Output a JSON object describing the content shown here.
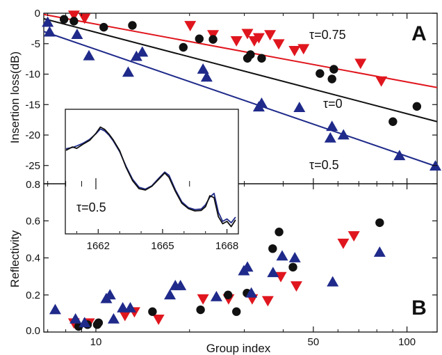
{
  "chart_data": [
    {
      "panel": "A",
      "type": "scatter",
      "ylabel": "Insertion loss(dB)",
      "xscale": "log",
      "xlim": [
        6.8,
        125
      ],
      "ylim": [
        -28,
        0
      ],
      "yticks": [
        "0",
        "-5",
        "-10",
        "-15",
        "-20",
        "-25"
      ],
      "colors": {
        "tau_0.75": "#e0161e",
        "tau_0": "#111111",
        "tau_0.5": "#1f2a8a"
      },
      "annotations": [
        "τ=0.75",
        "τ=0",
        "τ=0.5"
      ],
      "series": [
        {
          "name": "τ=0.75",
          "marker": "triangle-down",
          "color": "#e0161e",
          "points": [
            [
              8.5,
              -0.3
            ],
            [
              9.2,
              -0.8
            ],
            [
              20.1,
              -2.0
            ],
            [
              23.8,
              -3.5
            ],
            [
              28.3,
              -4.5
            ],
            [
              30.7,
              -3.3
            ],
            [
              32.3,
              -4.5
            ],
            [
              33.4,
              -4.0
            ],
            [
              36.3,
              -3.5
            ],
            [
              38.7,
              -5.0
            ],
            [
              43.5,
              -6.1
            ],
            [
              46.5,
              -5.8
            ],
            [
              70.9,
              -8.2
            ],
            [
              82.7,
              -11.1
            ]
          ],
          "fit": [
            [
              6.8,
              -0.2
            ],
            [
              125,
              -12.2
            ]
          ]
        },
        {
          "name": "τ=0",
          "marker": "circle",
          "color": "#111111",
          "points": [
            [
              7.9,
              -1.0
            ],
            [
              8.5,
              -1.3
            ],
            [
              10.6,
              -2.3
            ],
            [
              13.1,
              -2.0
            ],
            [
              19.1,
              -5.6
            ],
            [
              21.5,
              -4.2
            ],
            [
              23.8,
              -4.3
            ],
            [
              30.7,
              -7.4
            ],
            [
              31.4,
              -6.8
            ],
            [
              34.1,
              -7.4
            ],
            [
              52.5,
              -9.9
            ],
            [
              57.4,
              -10.8
            ],
            [
              58.2,
              -9.2
            ],
            [
              90.1,
              -17.8
            ],
            [
              107.6,
              -15.3
            ]
          ],
          "fit": [
            [
              6.8,
              -0.9
            ],
            [
              125,
              -17.8
            ]
          ]
        },
        {
          "name": "τ=0.5",
          "marker": "triangle-up",
          "color": "#1f2a8a",
          "points": [
            [
              7.0,
              -1.5
            ],
            [
              7.1,
              -3.1
            ],
            [
              8.7,
              -3.5
            ],
            [
              9.5,
              -7.0
            ],
            [
              12.7,
              -9.7
            ],
            [
              13.5,
              -7.1
            ],
            [
              14.1,
              -6.4
            ],
            [
              22.1,
              -9.2
            ],
            [
              22.7,
              -10.5
            ],
            [
              33.4,
              -15.4
            ],
            [
              34.1,
              -14.8
            ],
            [
              45.1,
              -15.5
            ],
            [
              56.7,
              -20.5
            ],
            [
              57.4,
              -18.6
            ],
            [
              62.5,
              -20.0
            ],
            [
              94.6,
              -23.4
            ],
            [
              123.4,
              -25.1
            ]
          ],
          "fit": [
            [
              6.8,
              -3.0
            ],
            [
              125,
              -25.2
            ]
          ]
        }
      ]
    },
    {
      "panel": "B",
      "type": "scatter",
      "ylabel": "Reflectivity",
      "xlabel": "Group index",
      "xscale": "log",
      "xlim": [
        6.8,
        125
      ],
      "ylim": [
        0.0,
        0.8
      ],
      "yticks": [
        "0.0",
        "0.2",
        "0.4",
        "0.6",
        "0.8"
      ],
      "xticks": [
        "10",
        "50",
        "100"
      ],
      "series": [
        {
          "name": "τ=0.75",
          "marker": "triangle-down",
          "color": "#e0161e",
          "points": [
            [
              8.5,
              0.05
            ],
            [
              9.5,
              0.05
            ],
            [
              12.4,
              0.09
            ],
            [
              13.3,
              0.11
            ],
            [
              15.9,
              0.07
            ],
            [
              22.1,
              0.18
            ],
            [
              26.7,
              0.18
            ],
            [
              31.8,
              0.18
            ],
            [
              35.7,
              0.17
            ],
            [
              39.3,
              0.3
            ],
            [
              44.1,
              0.25
            ],
            [
              62.4,
              0.48
            ],
            [
              67.5,
              0.52
            ]
          ],
          "fit": null
        },
        {
          "name": "τ=0",
          "marker": "circle",
          "color": "#111111",
          "points": [
            [
              8.8,
              0.03
            ],
            [
              9.4,
              0.04
            ],
            [
              10.1,
              0.04
            ],
            [
              10.2,
              0.05
            ],
            [
              15.2,
              0.11
            ],
            [
              21.7,
              0.12
            ],
            [
              26.6,
              0.2
            ],
            [
              28.3,
              0.11
            ],
            [
              30.6,
              0.21
            ],
            [
              37.0,
              0.45
            ],
            [
              38.8,
              0.54
            ],
            [
              43.0,
              0.35
            ],
            [
              81.7,
              0.59
            ]
          ],
          "fit": null
        },
        {
          "name": "τ=0.5",
          "marker": "triangle-up",
          "color": "#1f2a8a",
          "points": [
            [
              7.4,
              0.12
            ],
            [
              8.6,
              0.07
            ],
            [
              9.2,
              0.05
            ],
            [
              10.8,
              0.18
            ],
            [
              11.1,
              0.2
            ],
            [
              11.4,
              0.07
            ],
            [
              12.2,
              0.13
            ],
            [
              12.9,
              0.13
            ],
            [
              17.3,
              0.2
            ],
            [
              18.0,
              0.25
            ],
            [
              18.7,
              0.25
            ],
            [
              24.4,
              0.19
            ],
            [
              29.9,
              0.33
            ],
            [
              30.7,
              0.35
            ],
            [
              31.6,
              0.21
            ],
            [
              37.1,
              0.32
            ],
            [
              39.7,
              0.41
            ],
            [
              43.6,
              0.4
            ],
            [
              57.7,
              0.27
            ],
            [
              81.7,
              0.43
            ]
          ],
          "fit": null
        }
      ]
    },
    {
      "panel": "inset",
      "type": "line",
      "xlim": [
        1660.5,
        1668.5
      ],
      "xticks": [
        "1662",
        "1665",
        "1668"
      ],
      "annotation": "τ=0.5",
      "series": [
        {
          "name": "measured",
          "color": "#111111",
          "points": [
            [
              1660.5,
              -18.5
            ],
            [
              1660.8,
              -17.8
            ],
            [
              1661.0,
              -18.1
            ],
            [
              1661.3,
              -17.2
            ],
            [
              1661.6,
              -16.4
            ],
            [
              1661.9,
              -14.9
            ],
            [
              1662.1,
              -13.6
            ],
            [
              1662.3,
              -14.1
            ],
            [
              1662.5,
              -15.1
            ],
            [
              1662.7,
              -16.3
            ],
            [
              1663.0,
              -18.6
            ],
            [
              1663.3,
              -22.1
            ],
            [
              1663.6,
              -24.9
            ],
            [
              1663.9,
              -26.6
            ],
            [
              1664.2,
              -26.9
            ],
            [
              1664.5,
              -26.1
            ],
            [
              1664.8,
              -24.7
            ],
            [
              1665.1,
              -23.3
            ],
            [
              1665.3,
              -24.2
            ],
            [
              1665.6,
              -27.2
            ],
            [
              1665.9,
              -29.7
            ],
            [
              1666.2,
              -30.8
            ],
            [
              1666.5,
              -31.3
            ],
            [
              1666.8,
              -31.2
            ],
            [
              1667.0,
              -30.4
            ],
            [
              1667.2,
              -28.1
            ],
            [
              1667.4,
              -28.5
            ],
            [
              1667.6,
              -32.5
            ],
            [
              1667.8,
              -34.0
            ],
            [
              1668.0,
              -33.5
            ],
            [
              1668.2,
              -34.6
            ],
            [
              1668.4,
              -33.2
            ]
          ]
        },
        {
          "name": "fit",
          "color": "#1f2a8a",
          "points": [
            [
              1660.5,
              -18.2
            ],
            [
              1660.8,
              -17.9
            ],
            [
              1661.0,
              -17.6
            ],
            [
              1661.3,
              -17.0
            ],
            [
              1661.6,
              -16.2
            ],
            [
              1661.9,
              -15.0
            ],
            [
              1662.1,
              -14.0
            ],
            [
              1662.3,
              -14.4
            ],
            [
              1662.5,
              -15.3
            ],
            [
              1662.7,
              -16.5
            ],
            [
              1663.0,
              -18.8
            ],
            [
              1663.3,
              -21.9
            ],
            [
              1663.6,
              -24.6
            ],
            [
              1663.9,
              -26.3
            ],
            [
              1664.2,
              -26.7
            ],
            [
              1664.5,
              -26.0
            ],
            [
              1664.8,
              -24.5
            ],
            [
              1665.1,
              -23.1
            ],
            [
              1665.3,
              -23.8
            ],
            [
              1665.6,
              -26.9
            ],
            [
              1665.9,
              -29.4
            ],
            [
              1666.2,
              -30.6
            ],
            [
              1666.5,
              -31.0
            ],
            [
              1666.8,
              -30.9
            ],
            [
              1667.0,
              -30.0
            ],
            [
              1667.2,
              -28.4
            ],
            [
              1667.4,
              -27.6
            ],
            [
              1667.6,
              -31.6
            ],
            [
              1667.8,
              -33.5
            ],
            [
              1668.0,
              -33.0
            ],
            [
              1668.2,
              -33.8
            ],
            [
              1668.4,
              -32.6
            ]
          ]
        }
      ]
    }
  ]
}
